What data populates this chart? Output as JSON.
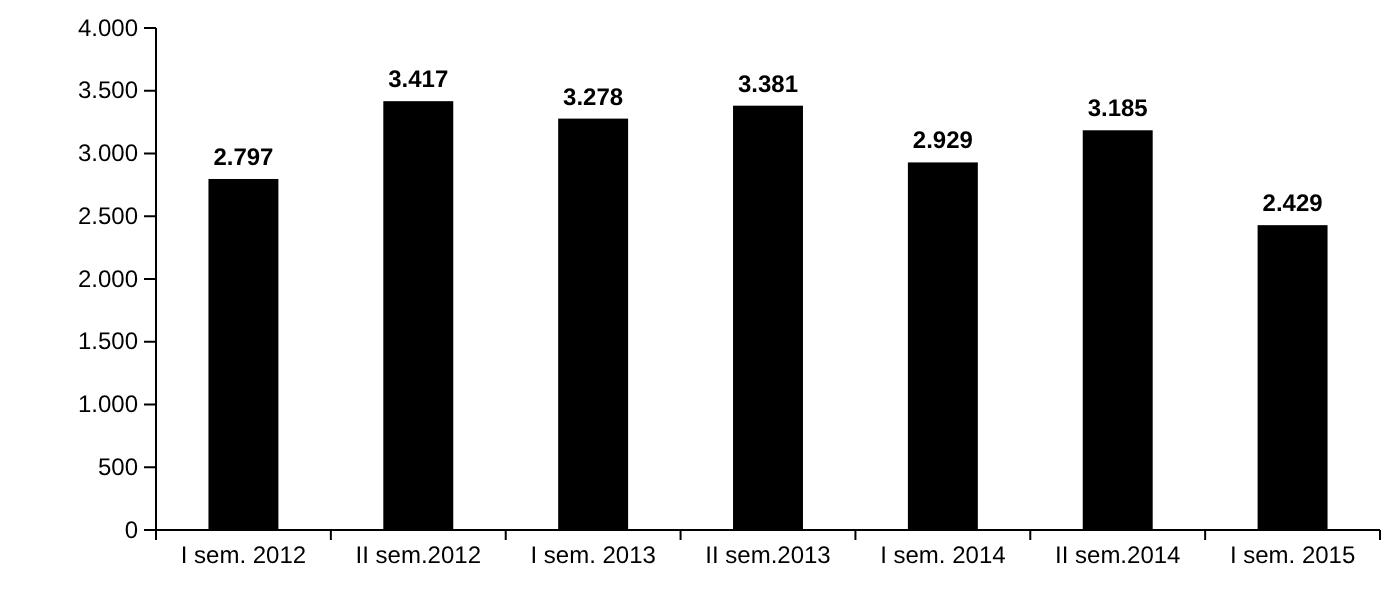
{
  "chart_data": {
    "type": "bar",
    "categories": [
      "I sem. 2012",
      "II sem.2012",
      "I sem. 2013",
      "II sem.2013",
      "I sem. 2014",
      "II sem.2014",
      "I sem. 2015"
    ],
    "values": [
      2797,
      3417,
      3278,
      3381,
      2929,
      3185,
      2429
    ],
    "value_labels": [
      "2.797",
      "3.417",
      "3.278",
      "3.381",
      "2.929",
      "3.185",
      "2.429"
    ],
    "color": "#000000",
    "ylim": [
      0,
      4000
    ],
    "yticks": [
      {
        "value": 0,
        "label": "0"
      },
      {
        "value": 500,
        "label": "500"
      },
      {
        "value": 1000,
        "label": "1.000"
      },
      {
        "value": 1500,
        "label": "1.500"
      },
      {
        "value": 2000,
        "label": "2.000"
      },
      {
        "value": 2500,
        "label": "2.500"
      },
      {
        "value": 3000,
        "label": "3.000"
      },
      {
        "value": 3500,
        "label": "3.500"
      },
      {
        "value": 4000,
        "label": "4.000"
      }
    ],
    "grid": false
  }
}
